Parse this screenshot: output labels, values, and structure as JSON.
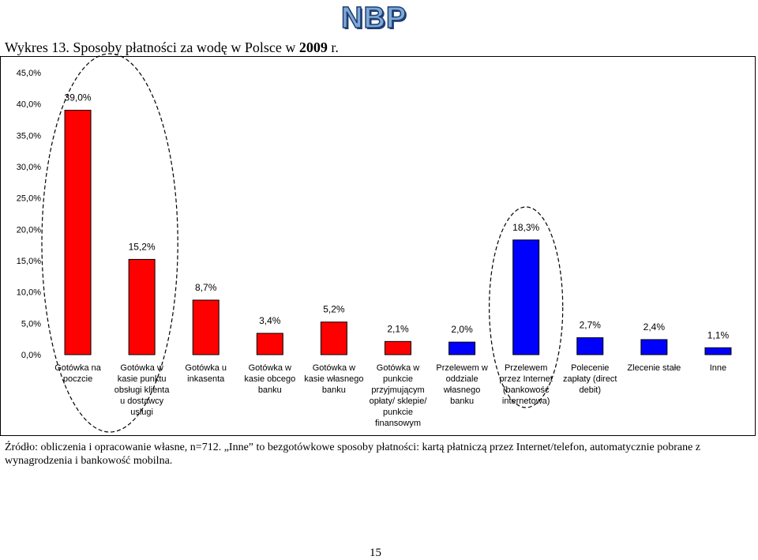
{
  "header": {
    "logo_text": "NBP",
    "title_prefix": "Wykres 13. Sposoby płatności za wodę w Polsce w ",
    "title_year": "2009",
    "title_suffix": " r."
  },
  "chart_data": {
    "type": "bar",
    "ylim": [
      0,
      45
    ],
    "y_ticks": [
      "0,0%",
      "5,0%",
      "10,0%",
      "15,0%",
      "20,0%",
      "25,0%",
      "30,0%",
      "35,0%",
      "40,0%",
      "45,0%"
    ],
    "grid": false,
    "legend": "none",
    "categories": [
      [
        "Gotówka na",
        "poczcie"
      ],
      [
        "Gotówka w",
        "kasie punktu",
        "obsługi klienta",
        "u dostawcy",
        "usługi"
      ],
      [
        "Gotówka u",
        "inkasenta"
      ],
      [
        "Gotówka w",
        "kasie obcego",
        "banku"
      ],
      [
        "Gotówka w",
        "kasie własnego",
        "banku"
      ],
      [
        "Gotówka w",
        "punkcie",
        "przyjmującym",
        "opłaty/ sklepie/",
        "punkcie",
        "finansowym"
      ],
      [
        "Przelewem w",
        "oddziale",
        "własnego",
        "banku"
      ],
      [
        "Przelewem",
        "przez Internet",
        "(bankowość",
        "internetowa)"
      ],
      [
        "Polecenie",
        "zapłaty (direct",
        "debit)"
      ],
      [
        "Zlecenie stałe"
      ],
      [
        "Inne"
      ]
    ],
    "values": [
      39.0,
      15.2,
      8.7,
      3.4,
      5.2,
      2.1,
      2.0,
      18.3,
      2.7,
      2.4,
      1.1
    ],
    "value_labels": [
      "39,0%",
      "15,2%",
      "8,7%",
      "3,4%",
      "5,2%",
      "2,1%",
      "2,0%",
      "18,3%",
      "2,7%",
      "2,4%",
      "1,1%"
    ],
    "colors": [
      "#ff0000",
      "#ff0000",
      "#ff0000",
      "#ff0000",
      "#ff0000",
      "#ff0000",
      "#0000ff",
      "#0000ff",
      "#0000ff",
      "#0000ff",
      "#0000ff"
    ],
    "highlight_groups": [
      [
        0,
        1
      ],
      [
        7
      ]
    ]
  },
  "footer": {
    "source": "Źródło: obliczenia i opracowanie własne, n=712. „Inne” to bezgotówkowe sposoby płatności: kartą płatniczą przez Internet/telefon, automatycznie pobrane z wynagrodzenia i bankowość mobilna.",
    "page_number": "15"
  }
}
